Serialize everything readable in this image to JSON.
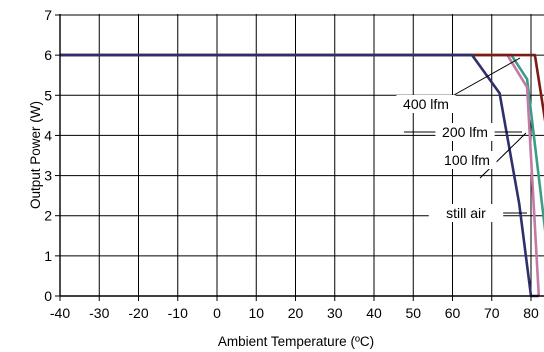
{
  "chart_data": {
    "type": "line",
    "xlabel": "Ambient Temperature (ºC)",
    "ylabel": "Output Power (W)",
    "xlim": [
      -40,
      85
    ],
    "ylim": [
      0,
      7
    ],
    "x_ticks": [
      -40,
      -30,
      -20,
      -10,
      0,
      10,
      20,
      30,
      40,
      50,
      60,
      70,
      80
    ],
    "y_ticks": [
      0,
      1,
      2,
      3,
      4,
      5,
      6,
      7
    ],
    "grid": true,
    "series": [
      {
        "name": "400 lfm",
        "color": "#7a1c14",
        "x": [
          -40,
          81,
          85
        ],
        "y": [
          6,
          6,
          3.5
        ]
      },
      {
        "name": "200 lfm",
        "color": "#3a9e86",
        "x": [
          -40,
          75,
          79,
          85
        ],
        "y": [
          6,
          6,
          5.4,
          0.5
        ]
      },
      {
        "name": "100 lfm",
        "color": "#c27aa6",
        "x": [
          -40,
          74,
          79,
          82
        ],
        "y": [
          6,
          6,
          5.2,
          0
        ]
      },
      {
        "name": "still air",
        "color": "#2e2f6b",
        "x": [
          -40,
          65,
          72,
          77,
          80,
          82
        ],
        "y": [
          6,
          6,
          5.05,
          2.3,
          0,
          0
        ]
      }
    ],
    "annotations": [
      {
        "label": "400 lfm"
      },
      {
        "label": "200 lfm"
      },
      {
        "label": "100 lfm"
      },
      {
        "label": "still air"
      }
    ]
  }
}
